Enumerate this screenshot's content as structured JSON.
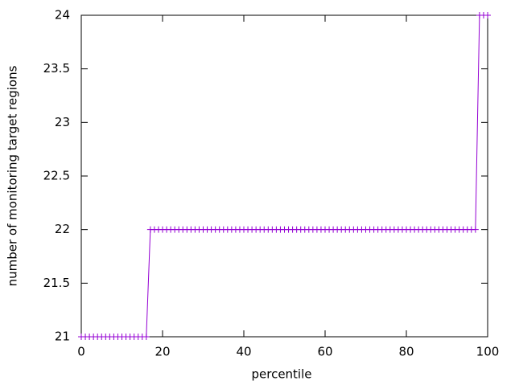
{
  "chart_data": {
    "type": "line",
    "xlabel": "percentile",
    "ylabel": "number of monitoring target regions",
    "x": [
      0,
      1,
      2,
      3,
      4,
      5,
      6,
      7,
      8,
      9,
      10,
      11,
      12,
      13,
      14,
      15,
      16,
      17,
      18,
      19,
      20,
      21,
      22,
      23,
      24,
      25,
      26,
      27,
      28,
      29,
      30,
      31,
      32,
      33,
      34,
      35,
      36,
      37,
      38,
      39,
      40,
      41,
      42,
      43,
      44,
      45,
      46,
      47,
      48,
      49,
      50,
      51,
      52,
      53,
      54,
      55,
      56,
      57,
      58,
      59,
      60,
      61,
      62,
      63,
      64,
      65,
      66,
      67,
      68,
      69,
      70,
      71,
      72,
      73,
      74,
      75,
      76,
      77,
      78,
      79,
      80,
      81,
      82,
      83,
      84,
      85,
      86,
      87,
      88,
      89,
      90,
      91,
      92,
      93,
      94,
      95,
      96,
      97,
      98,
      99,
      100
    ],
    "values": [
      21,
      21,
      21,
      21,
      21,
      21,
      21,
      21,
      21,
      21,
      21,
      21,
      21,
      21,
      21,
      21,
      21,
      22,
      22,
      22,
      22,
      22,
      22,
      22,
      22,
      22,
      22,
      22,
      22,
      22,
      22,
      22,
      22,
      22,
      22,
      22,
      22,
      22,
      22,
      22,
      22,
      22,
      22,
      22,
      22,
      22,
      22,
      22,
      22,
      22,
      22,
      22,
      22,
      22,
      22,
      22,
      22,
      22,
      22,
      22,
      22,
      22,
      22,
      22,
      22,
      22,
      22,
      22,
      22,
      22,
      22,
      22,
      22,
      22,
      22,
      22,
      22,
      22,
      22,
      22,
      22,
      22,
      22,
      22,
      22,
      22,
      22,
      22,
      22,
      22,
      22,
      22,
      22,
      22,
      22,
      22,
      22,
      22,
      24,
      24,
      24
    ],
    "color": "#9400d3",
    "xlim": [
      0,
      100
    ],
    "xticks": [
      0,
      20,
      40,
      60,
      80,
      100
    ],
    "ylim": [
      21,
      24
    ],
    "yticks": [
      21,
      21.5,
      22,
      22.5,
      23,
      23.5,
      24
    ],
    "grid": false
  }
}
